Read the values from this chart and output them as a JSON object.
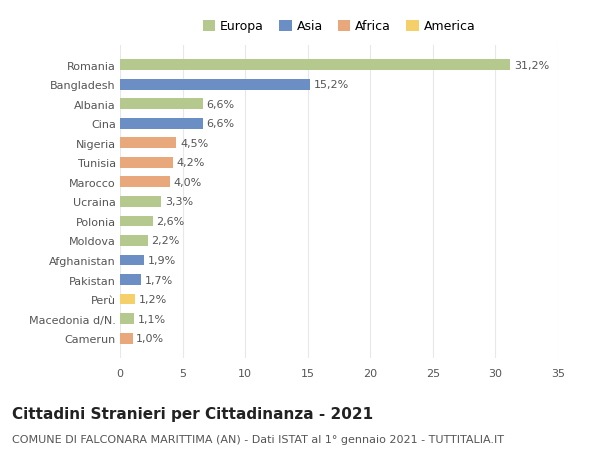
{
  "categories": [
    "Camerun",
    "Macedonia d/N.",
    "Perù",
    "Pakistan",
    "Afghanistan",
    "Moldova",
    "Polonia",
    "Ucraina",
    "Marocco",
    "Tunisia",
    "Nigeria",
    "Cina",
    "Albania",
    "Bangladesh",
    "Romania"
  ],
  "values": [
    1.0,
    1.1,
    1.2,
    1.7,
    1.9,
    2.2,
    2.6,
    3.3,
    4.0,
    4.2,
    4.5,
    6.6,
    6.6,
    15.2,
    31.2
  ],
  "labels": [
    "1,0%",
    "1,1%",
    "1,2%",
    "1,7%",
    "1,9%",
    "2,2%",
    "2,6%",
    "3,3%",
    "4,0%",
    "4,2%",
    "4,5%",
    "6,6%",
    "6,6%",
    "15,2%",
    "31,2%"
  ],
  "colors": [
    "#e8a87c",
    "#b5c98e",
    "#f5d06a",
    "#6b8fc4",
    "#6b8fc4",
    "#b5c98e",
    "#b5c98e",
    "#b5c98e",
    "#e8a87c",
    "#e8a87c",
    "#e8a87c",
    "#6b8fc4",
    "#b5c98e",
    "#6b8fc4",
    "#b5c98e"
  ],
  "legend_labels": [
    "Europa",
    "Asia",
    "Africa",
    "America"
  ],
  "legend_colors": [
    "#b5c98e",
    "#6b8fc4",
    "#e8a87c",
    "#f5d06a"
  ],
  "title": "Cittadini Stranieri per Cittadinanza - 2021",
  "subtitle": "COMUNE DI FALCONARA MARITTIMA (AN) - Dati ISTAT al 1° gennaio 2021 - TUTTITALIA.IT",
  "xlim": [
    0,
    35
  ],
  "xticks": [
    0,
    5,
    10,
    15,
    20,
    25,
    30,
    35
  ],
  "background_color": "#ffffff",
  "grid_color": "#e8e8e8",
  "bar_height": 0.55,
  "label_fontsize": 8,
  "tick_fontsize": 8,
  "title_fontsize": 11,
  "subtitle_fontsize": 8,
  "legend_fontsize": 9
}
